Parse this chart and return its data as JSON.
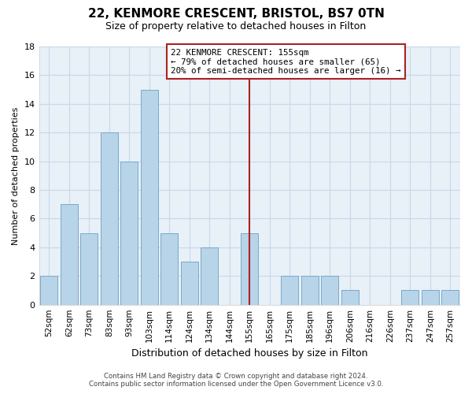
{
  "title": "22, KENMORE CRESCENT, BRISTOL, BS7 0TN",
  "subtitle": "Size of property relative to detached houses in Filton",
  "xlabel": "Distribution of detached houses by size in Filton",
  "ylabel": "Number of detached properties",
  "bar_labels": [
    "52sqm",
    "62sqm",
    "73sqm",
    "83sqm",
    "93sqm",
    "103sqm",
    "114sqm",
    "124sqm",
    "134sqm",
    "144sqm",
    "155sqm",
    "165sqm",
    "175sqm",
    "185sqm",
    "196sqm",
    "206sqm",
    "216sqm",
    "226sqm",
    "237sqm",
    "247sqm",
    "257sqm"
  ],
  "bar_values": [
    2,
    7,
    5,
    12,
    10,
    15,
    5,
    3,
    4,
    0,
    5,
    0,
    2,
    2,
    2,
    1,
    0,
    0,
    1,
    1,
    1
  ],
  "bar_color": "#b8d4e8",
  "bar_edge_color": "#7aaac8",
  "property_line_index": 10,
  "property_label": "22 KENMORE CRESCENT: 155sqm",
  "annotation_line1": "← 79% of detached houses are smaller (65)",
  "annotation_line2": "20% of semi-detached houses are larger (16) →",
  "vline_color": "#aa2222",
  "annotation_box_edgecolor": "#aa2222",
  "ylim": [
    0,
    18
  ],
  "yticks": [
    0,
    2,
    4,
    6,
    8,
    10,
    12,
    14,
    16,
    18
  ],
  "footer_line1": "Contains HM Land Registry data © Crown copyright and database right 2024.",
  "footer_line2": "Contains public sector information licensed under the Open Government Licence v3.0.",
  "background_color": "#ffffff",
  "grid_color": "#c8d8e8"
}
